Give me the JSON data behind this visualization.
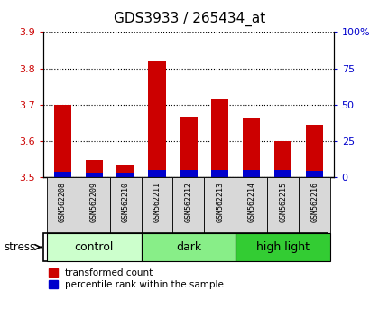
{
  "title": "GDS3933 / 265434_at",
  "samples": [
    "GSM562208",
    "GSM562209",
    "GSM562210",
    "GSM562211",
    "GSM562212",
    "GSM562213",
    "GSM562214",
    "GSM562215",
    "GSM562216"
  ],
  "transformed_counts": [
    3.7,
    3.548,
    3.536,
    3.82,
    3.668,
    3.718,
    3.665,
    3.6,
    3.645
  ],
  "percentile_ranks": [
    4.0,
    3.5,
    3.5,
    5.5,
    5.0,
    5.5,
    5.0,
    5.0,
    4.5
  ],
  "ylim_left": [
    3.5,
    3.9
  ],
  "ylim_right": [
    0,
    100
  ],
  "yticks_left": [
    3.5,
    3.6,
    3.7,
    3.8,
    3.9
  ],
  "yticks_right": [
    0,
    25,
    50,
    75,
    100
  ],
  "ytick_labels_right": [
    "0",
    "25",
    "50",
    "75",
    "100%"
  ],
  "groups": [
    {
      "label": "control",
      "indices": [
        0,
        1,
        2
      ],
      "color": "#ccffcc"
    },
    {
      "label": "dark",
      "indices": [
        3,
        4,
        5
      ],
      "color": "#88ee88"
    },
    {
      "label": "high light",
      "indices": [
        6,
        7,
        8
      ],
      "color": "#33cc33"
    }
  ],
  "bar_width": 0.55,
  "bar_color_red": "#cc0000",
  "bar_color_blue": "#0000cc",
  "baseline": 3.5,
  "tick_label_color_left": "#cc0000",
  "tick_label_color_right": "#0000cc",
  "stress_label": "stress",
  "legend_red": "transformed count",
  "legend_blue": "percentile rank within the sample",
  "title_fontsize": 11,
  "axis_fontsize": 8,
  "legend_fontsize": 7.5,
  "sample_fontsize": 6,
  "group_fontsize": 9
}
